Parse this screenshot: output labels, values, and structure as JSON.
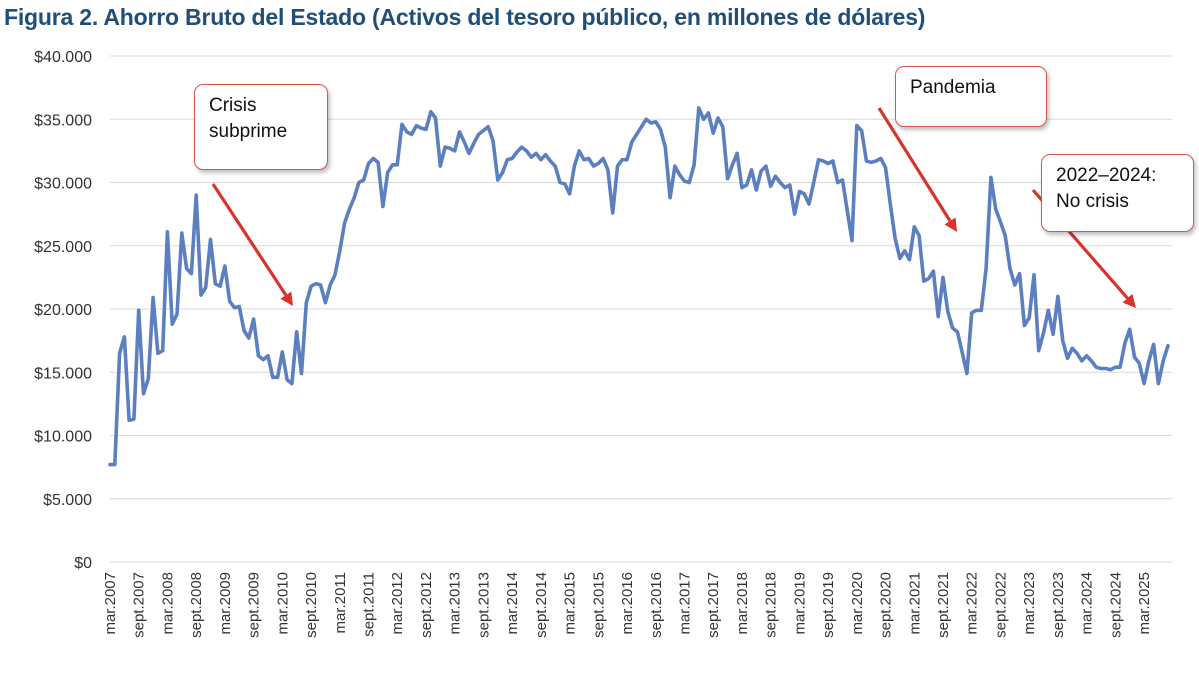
{
  "title": "Figura 2. Ahorro Bruto del Estado (Activos del tesoro público, en millones de dólares)",
  "chart_data": {
    "type": "line",
    "title": "Figura 2. Ahorro Bruto del Estado (Activos del tesoro público, en millones de dólares)",
    "xlabel": "",
    "ylabel": "",
    "ylim": [
      0,
      40000
    ],
    "yticks": [
      0,
      5000,
      10000,
      15000,
      20000,
      25000,
      30000,
      35000,
      40000
    ],
    "ytick_labels": [
      "$0",
      "$5.000",
      "$10.000",
      "$15.000",
      "$20.000",
      "$25.000",
      "$30.000",
      "$35.000",
      "$40.000"
    ],
    "grid": true,
    "line_color": "#5b7fbf",
    "annotation_color": "#d9342b",
    "x_tick_labels": [
      "mar.2007",
      "sept.2007",
      "mar.2008",
      "sept.2008",
      "mar.2009",
      "sept.2009",
      "mar.2010",
      "sept.2010",
      "mar.2011",
      "sept.2011",
      "mar.2012",
      "sept.2012",
      "mar.2013",
      "sept.2013",
      "mar.2014",
      "sept.2014",
      "mar.2015",
      "sept.2015",
      "mar.2016",
      "sept.2016",
      "mar.2017",
      "sept.2017",
      "mar.2018",
      "sept.2018",
      "mar.2019",
      "sept.2019",
      "mar.2020",
      "sept.2020",
      "mar.2021",
      "sept.2021",
      "mar.2022",
      "sept.2022",
      "mar.2023",
      "sept.2023",
      "mar.2024",
      "sept.2024",
      "mar.2025"
    ],
    "series": [
      {
        "name": "Ahorro Bruto del Estado",
        "x_start": "mar.2007",
        "frequency": "monthly",
        "values": [
          7700,
          7700,
          16500,
          17800,
          11200,
          11300,
          19900,
          13300,
          14500,
          20900,
          16500,
          16700,
          26100,
          18800,
          19600,
          26000,
          23200,
          22800,
          29000,
          21100,
          21700,
          25500,
          22000,
          21800,
          23400,
          20600,
          20100,
          20200,
          18300,
          17700,
          19200,
          16300,
          16000,
          16300,
          14600,
          14600,
          16600,
          14400,
          14100,
          18200,
          14900,
          20500,
          21800,
          22000,
          21900,
          20500,
          21900,
          22700,
          24600,
          26800,
          27900,
          28800,
          30000,
          30200,
          31500,
          31900,
          31600,
          28100,
          30800,
          31400,
          31400,
          34600,
          34000,
          33800,
          34500,
          34300,
          34200,
          35600,
          35100,
          31300,
          32800,
          32700,
          32500,
          34000,
          33200,
          32300,
          33100,
          33800,
          34100,
          34400,
          33300,
          30200,
          30800,
          31800,
          31900,
          32400,
          32800,
          32500,
          32000,
          32300,
          31800,
          32200,
          31700,
          31300,
          30000,
          29900,
          29100,
          31300,
          32500,
          31800,
          31900,
          31300,
          31500,
          31900,
          31000,
          27600,
          31300,
          31800,
          31800,
          33200,
          33800,
          34400,
          35000,
          34700,
          34800,
          34200,
          32800,
          28800,
          31300,
          30600,
          30100,
          30000,
          31400,
          35900,
          35000,
          35500,
          33900,
          35100,
          34400,
          30300,
          31400,
          32300,
          29600,
          29800,
          31000,
          29400,
          30900,
          31300,
          29700,
          30500,
          30000,
          29600,
          29800,
          27500,
          29300,
          29100,
          28300,
          30000,
          31800,
          31700,
          31500,
          31700,
          30000,
          30200,
          27800,
          25400,
          34500,
          34100,
          31700,
          31600,
          31700,
          31900,
          31200,
          28300,
          25600,
          24000,
          24600,
          23900,
          26500,
          25800,
          22200,
          22400,
          23000,
          19400,
          22500,
          19800,
          18500,
          18200,
          16600,
          14900,
          19700,
          19900,
          19900,
          23200,
          30400,
          27900,
          26900,
          25800,
          23200,
          21900,
          22800,
          18700,
          19300,
          22700,
          16700,
          18100,
          19900,
          18000,
          21000,
          17500,
          16100,
          16900,
          16500,
          15900,
          16300,
          15900,
          15400,
          15300,
          15300,
          15200,
          15400,
          15400,
          17300,
          18400,
          16200,
          15700,
          14100,
          15900,
          17200,
          14100,
          15900,
          17100
        ]
      }
    ],
    "annotations": [
      {
        "text": "Crisis\nsubprime"
      },
      {
        "text": "Pandemia"
      },
      {
        "text": "2022–2024:\nNo crisis"
      }
    ]
  }
}
